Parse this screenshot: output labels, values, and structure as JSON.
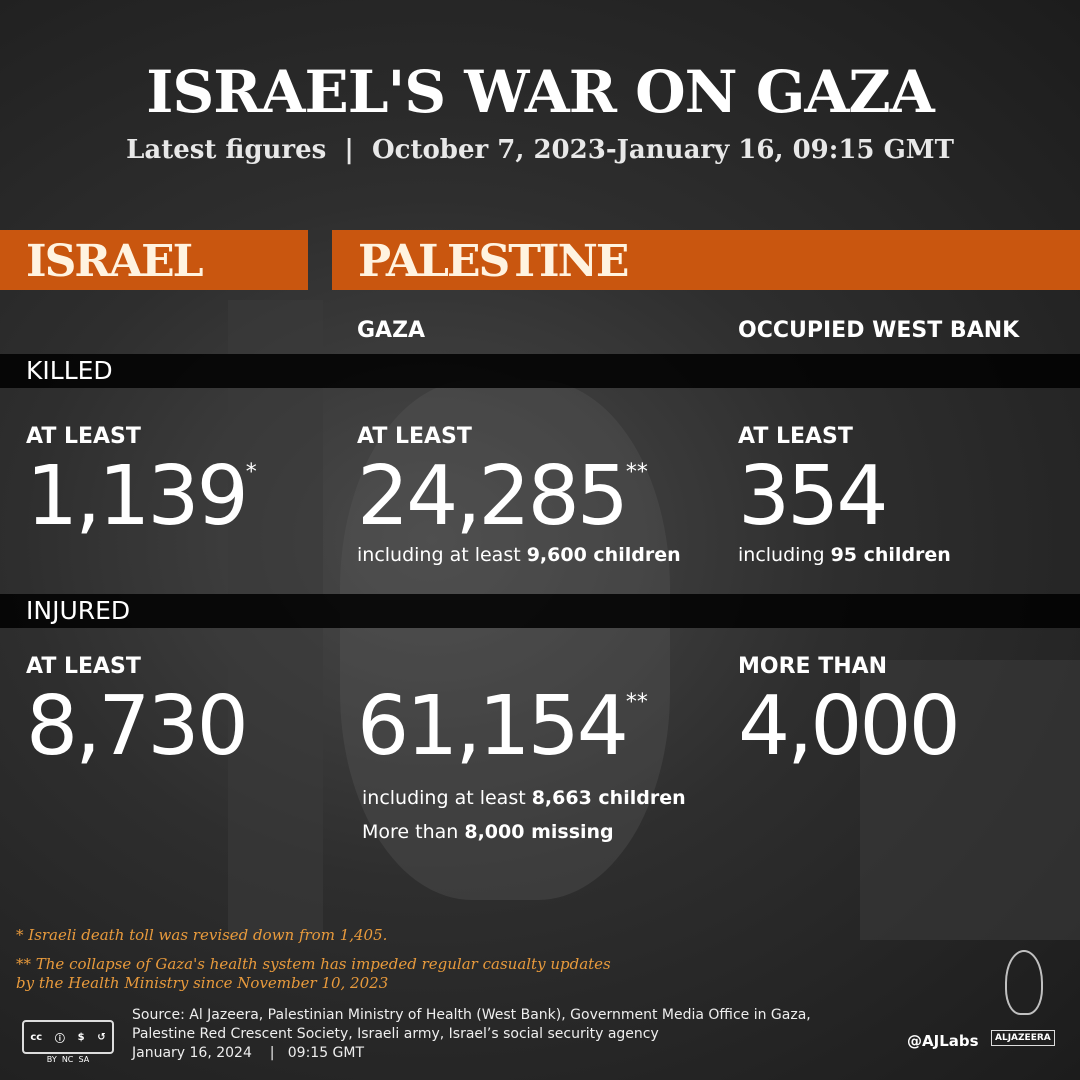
{
  "header": {
    "title": "ISRAEL'S WAR ON GAZA",
    "subtitle": "Latest figures  |  October 7, 2023-January 16, 09:15 GMT"
  },
  "columns": {
    "israel": "ISRAEL",
    "palestine": "PALESTINE",
    "gaza": "GAZA",
    "west_bank": "OCCUPIED WEST BANK"
  },
  "accent_color": "#c9560f",
  "killed": {
    "label": "KILLED",
    "israel": {
      "prefix": "AT LEAST",
      "value": "1,139",
      "mark": "*"
    },
    "gaza": {
      "prefix": "AT LEAST",
      "value": "24,285",
      "mark": "**",
      "note_pre": "including at least ",
      "note_bold": "9,600 children"
    },
    "west_bank": {
      "prefix": "AT LEAST",
      "value": "354",
      "note_pre": "including ",
      "note_bold": "95 children"
    }
  },
  "injured": {
    "label": "INJURED",
    "israel": {
      "prefix": "AT LEAST",
      "value": "8,730"
    },
    "gaza": {
      "value": "61,154",
      "mark": "**",
      "note_pre": "including at least ",
      "note_bold": "8,663 children",
      "note2_pre": "More than ",
      "note2_bold": "8,000 missing"
    },
    "west_bank": {
      "prefix": "MORE THAN",
      "value": "4,000"
    }
  },
  "footnotes": [
    "* Israeli death toll was revised down from 1,405.",
    "** The collapse of Gaza's health system has impeded regular casualty updates",
    "by the Health Ministry since November 10, 2023"
  ],
  "source": {
    "line1": "Source: Al Jazeera, Palestinian Ministry of Health (West Bank), Government Media Office in Gaza,",
    "line2": "Palestine Red Crescent Society, Israeli army, Israel’s social security agency",
    "date": "January 16, 2024",
    "time": "09:15 GMT",
    "sep": "|"
  },
  "license": {
    "label": "BY  NC  SA",
    "icons": [
      "cc",
      "by",
      "nc",
      "sa"
    ]
  },
  "brand": {
    "handle": "@AJLabs",
    "name": "ALJAZEERA"
  }
}
